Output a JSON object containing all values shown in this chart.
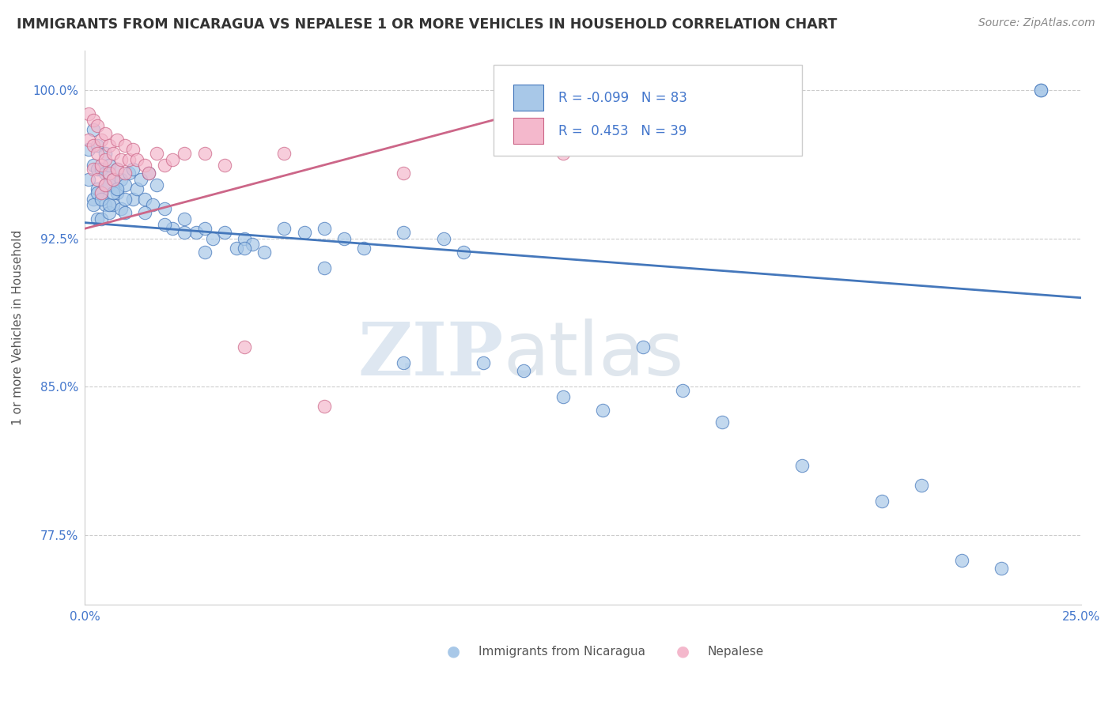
{
  "title": "IMMIGRANTS FROM NICARAGUA VS NEPALESE 1 OR MORE VEHICLES IN HOUSEHOLD CORRELATION CHART",
  "source": "Source: ZipAtlas.com",
  "ylabel": "1 or more Vehicles in Household",
  "xlim": [
    0.0,
    0.25
  ],
  "ylim": [
    0.74,
    1.02
  ],
  "xticks": [
    0.0,
    0.05,
    0.1,
    0.15,
    0.2,
    0.25
  ],
  "xticklabels": [
    "0.0%",
    "",
    "",
    "",
    "",
    "25.0%"
  ],
  "yticks": [
    0.775,
    0.85,
    0.925,
    1.0
  ],
  "yticklabels": [
    "77.5%",
    "85.0%",
    "92.5%",
    "100.0%"
  ],
  "legend_r1": "-0.099",
  "legend_n1": "83",
  "legend_r2": "0.453",
  "legend_n2": "39",
  "color_blue": "#a8c8e8",
  "color_pink": "#f4b8cc",
  "line_color_blue": "#4477bb",
  "line_color_pink": "#cc6688",
  "watermark_zip": "ZIP",
  "watermark_atlas": "atlas",
  "blue_line_x0": 0.0,
  "blue_line_y0": 0.933,
  "blue_line_x1": 0.25,
  "blue_line_y1": 0.895,
  "pink_line_x0": 0.0,
  "pink_line_y0": 0.93,
  "pink_line_x1": 0.14,
  "pink_line_y1": 1.005,
  "blue_points_x": [
    0.001,
    0.001,
    0.002,
    0.002,
    0.002,
    0.003,
    0.003,
    0.003,
    0.003,
    0.004,
    0.004,
    0.004,
    0.005,
    0.005,
    0.005,
    0.006,
    0.006,
    0.006,
    0.007,
    0.007,
    0.008,
    0.008,
    0.009,
    0.009,
    0.01,
    0.01,
    0.011,
    0.012,
    0.012,
    0.013,
    0.014,
    0.015,
    0.016,
    0.017,
    0.018,
    0.02,
    0.022,
    0.025,
    0.028,
    0.03,
    0.032,
    0.035,
    0.038,
    0.04,
    0.042,
    0.045,
    0.05,
    0.055,
    0.06,
    0.065,
    0.07,
    0.08,
    0.09,
    0.095,
    0.1,
    0.11,
    0.12,
    0.13,
    0.14,
    0.15,
    0.16,
    0.18,
    0.2,
    0.21,
    0.22,
    0.23,
    0.24,
    0.002,
    0.003,
    0.004,
    0.005,
    0.006,
    0.007,
    0.008,
    0.01,
    0.015,
    0.02,
    0.025,
    0.03,
    0.04,
    0.06,
    0.08,
    0.24
  ],
  "blue_points_y": [
    0.97,
    0.955,
    0.98,
    0.962,
    0.945,
    0.972,
    0.95,
    0.935,
    0.96,
    0.948,
    0.935,
    0.96,
    0.968,
    0.942,
    0.958,
    0.952,
    0.938,
    0.962,
    0.942,
    0.955,
    0.948,
    0.96,
    0.94,
    0.955,
    0.952,
    0.938,
    0.958,
    0.945,
    0.96,
    0.95,
    0.955,
    0.945,
    0.958,
    0.942,
    0.952,
    0.94,
    0.93,
    0.935,
    0.928,
    0.93,
    0.925,
    0.928,
    0.92,
    0.925,
    0.922,
    0.918,
    0.93,
    0.928,
    0.93,
    0.925,
    0.92,
    0.928,
    0.925,
    0.918,
    0.862,
    0.858,
    0.845,
    0.838,
    0.87,
    0.848,
    0.832,
    0.81,
    0.792,
    0.8,
    0.762,
    0.758,
    1.0,
    0.942,
    0.948,
    0.945,
    0.952,
    0.942,
    0.948,
    0.95,
    0.945,
    0.938,
    0.932,
    0.928,
    0.918,
    0.92,
    0.91,
    0.862,
    1.0
  ],
  "pink_points_x": [
    0.001,
    0.001,
    0.002,
    0.002,
    0.002,
    0.003,
    0.003,
    0.003,
    0.004,
    0.004,
    0.004,
    0.005,
    0.005,
    0.005,
    0.006,
    0.006,
    0.007,
    0.007,
    0.008,
    0.008,
    0.009,
    0.01,
    0.01,
    0.011,
    0.012,
    0.013,
    0.015,
    0.016,
    0.018,
    0.02,
    0.022,
    0.025,
    0.03,
    0.035,
    0.04,
    0.05,
    0.06,
    0.08,
    0.12
  ],
  "pink_points_y": [
    0.988,
    0.975,
    0.985,
    0.972,
    0.96,
    0.982,
    0.968,
    0.955,
    0.975,
    0.962,
    0.948,
    0.978,
    0.965,
    0.952,
    0.972,
    0.958,
    0.968,
    0.955,
    0.975,
    0.96,
    0.965,
    0.972,
    0.958,
    0.965,
    0.97,
    0.965,
    0.962,
    0.958,
    0.968,
    0.962,
    0.965,
    0.968,
    0.968,
    0.962,
    0.87,
    0.968,
    0.84,
    0.958,
    0.968
  ]
}
